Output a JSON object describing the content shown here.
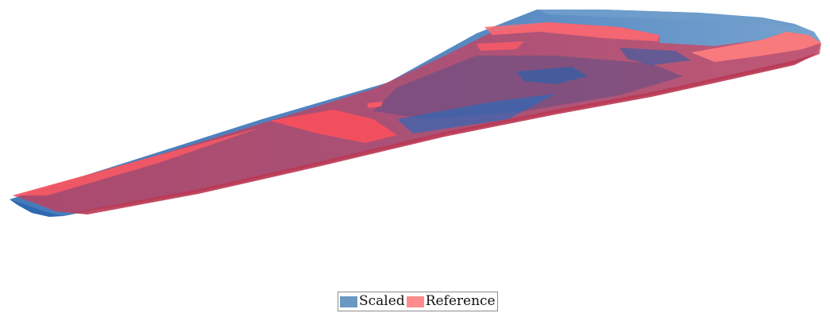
{
  "figure": {
    "legend": {
      "entries": [
        {
          "label": "Scaled",
          "color": "#6b97c3"
        },
        {
          "label": "Reference",
          "color": "#ff8c8c"
        }
      ]
    },
    "colors": {
      "scaled_fill": "#5d8fc2",
      "scaled_dark": "#2b66b0",
      "reference_fill": "#ff6f6f",
      "reference_dark": "#c0405a",
      "overlap": "#6a4f7e"
    }
  }
}
